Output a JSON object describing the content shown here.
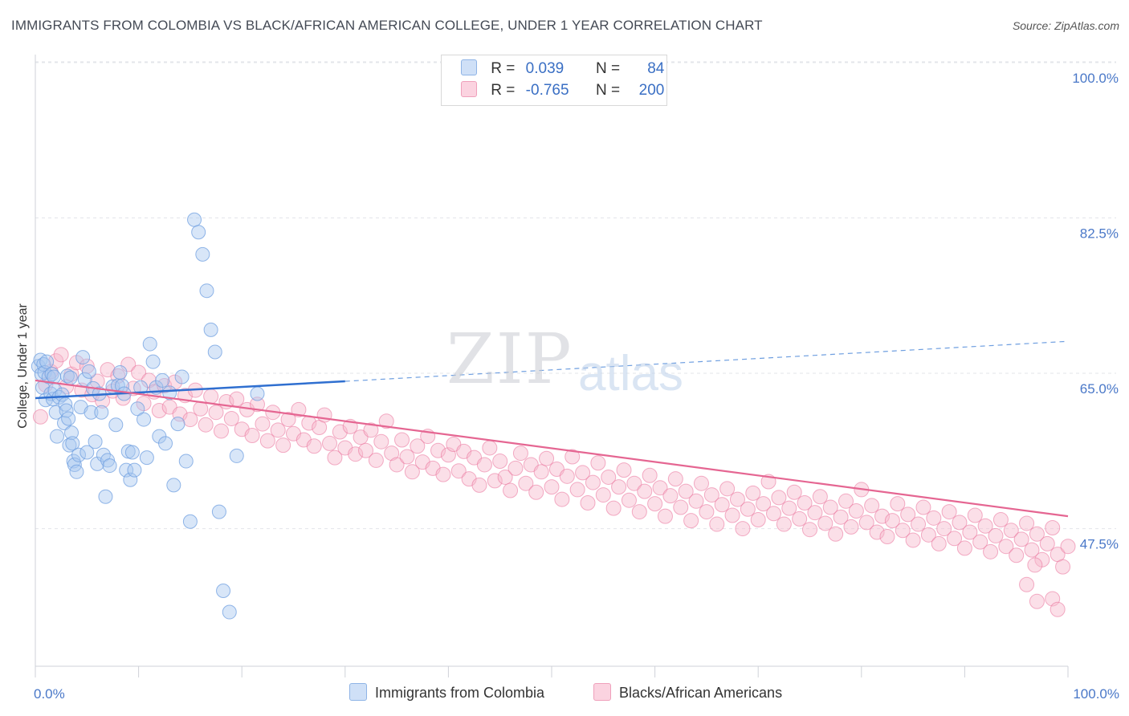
{
  "header": {
    "title": "IMMIGRANTS FROM COLOMBIA VS BLACK/AFRICAN AMERICAN COLLEGE, UNDER 1 YEAR CORRELATION CHART",
    "source": "Source: ZipAtlas.com"
  },
  "watermark": {
    "zip": "ZIP",
    "atlas": "atlas"
  },
  "legend": {
    "rows": [
      {
        "r_label": "R =",
        "r_value": "0.039",
        "n_label": "N =",
        "n_value": "84",
        "color": "#a9c8f0"
      },
      {
        "r_label": "R =",
        "r_value": "-0.765",
        "n_label": "N =",
        "n_value": "200",
        "color": "#f6b8cb"
      }
    ]
  },
  "bottom_legend": {
    "items": [
      {
        "label": "Immigrants from Colombia",
        "color": "#a9c8f0"
      },
      {
        "label": "Blacks/African Americans",
        "color": "#f6b8cb"
      }
    ]
  },
  "chart_data": {
    "type": "scatter",
    "title": "IMMIGRANTS FROM COLOMBIA VS BLACK/AFRICAN AMERICAN COLLEGE, UNDER 1 YEAR CORRELATION CHART",
    "xlabel": "",
    "ylabel": "College, Under 1 year",
    "xlim": [
      0,
      100
    ],
    "ylim": [
      32,
      100
    ],
    "x_tick_labels": [
      "0.0%",
      "100.0%"
    ],
    "y_ticks": [
      47.5,
      65.0,
      82.5,
      100.0
    ],
    "y_tick_labels": [
      "47.5%",
      "65.0%",
      "82.5%",
      "100.0%"
    ],
    "grid": true,
    "legend_position": "top-center",
    "series": [
      {
        "name": "Immigrants from Colombia",
        "color": "#6f9fe0",
        "fill": "#a9c8f0",
        "trend": {
          "x0": 0,
          "y0": 62.2,
          "x1": 30,
          "y1": 64.1,
          "dashed_x1": 100,
          "dashed_y1": 68.6
        },
        "points": [
          [
            0.3,
            65.8
          ],
          [
            0.5,
            66.5
          ],
          [
            0.6,
            64.9
          ],
          [
            0.7,
            63.4
          ],
          [
            0.8,
            66.0
          ],
          [
            0.9,
            65.1
          ],
          [
            1.0,
            62.0
          ],
          [
            1.1,
            66.3
          ],
          [
            1.3,
            64.6
          ],
          [
            1.5,
            62.7
          ],
          [
            1.6,
            64.9
          ],
          [
            1.7,
            62.1
          ],
          [
            1.8,
            64.6
          ],
          [
            1.9,
            63.1
          ],
          [
            2.0,
            60.6
          ],
          [
            2.1,
            57.9
          ],
          [
            2.3,
            62.3
          ],
          [
            2.6,
            62.6
          ],
          [
            2.8,
            59.4
          ],
          [
            2.9,
            61.5
          ],
          [
            3.0,
            60.8
          ],
          [
            3.1,
            64.7
          ],
          [
            3.2,
            59.9
          ],
          [
            3.3,
            56.9
          ],
          [
            3.4,
            64.5
          ],
          [
            3.5,
            58.3
          ],
          [
            3.6,
            57.1
          ],
          [
            3.7,
            55.1
          ],
          [
            3.8,
            54.7
          ],
          [
            4.0,
            53.9
          ],
          [
            4.2,
            55.8
          ],
          [
            4.4,
            61.2
          ],
          [
            4.6,
            66.8
          ],
          [
            4.8,
            64.3
          ],
          [
            5.0,
            56.1
          ],
          [
            5.2,
            65.2
          ],
          [
            5.4,
            60.6
          ],
          [
            5.6,
            63.3
          ],
          [
            5.8,
            57.3
          ],
          [
            6.0,
            54.8
          ],
          [
            6.2,
            62.7
          ],
          [
            6.4,
            60.6
          ],
          [
            6.6,
            55.8
          ],
          [
            6.8,
            51.1
          ],
          [
            7.0,
            55.2
          ],
          [
            7.2,
            54.6
          ],
          [
            7.5,
            63.5
          ],
          [
            7.8,
            59.2
          ],
          [
            8.0,
            63.6
          ],
          [
            8.2,
            65.1
          ],
          [
            8.4,
            63.6
          ],
          [
            8.6,
            62.7
          ],
          [
            8.8,
            54.1
          ],
          [
            9.0,
            56.2
          ],
          [
            9.2,
            53.0
          ],
          [
            9.4,
            56.1
          ],
          [
            9.6,
            54.1
          ],
          [
            9.9,
            61.0
          ],
          [
            10.2,
            63.4
          ],
          [
            10.5,
            59.8
          ],
          [
            10.8,
            55.5
          ],
          [
            11.1,
            68.3
          ],
          [
            11.4,
            66.3
          ],
          [
            11.7,
            63.4
          ],
          [
            12.0,
            57.9
          ],
          [
            12.3,
            64.2
          ],
          [
            12.6,
            57.1
          ],
          [
            13.0,
            62.8
          ],
          [
            13.4,
            52.4
          ],
          [
            13.8,
            59.3
          ],
          [
            14.2,
            64.6
          ],
          [
            14.6,
            55.1
          ],
          [
            15.0,
            48.3
          ],
          [
            15.4,
            82.3
          ],
          [
            15.8,
            80.9
          ],
          [
            16.2,
            78.4
          ],
          [
            16.6,
            74.3
          ],
          [
            17.0,
            69.9
          ],
          [
            17.4,
            67.4
          ],
          [
            17.8,
            49.4
          ],
          [
            18.2,
            40.5
          ],
          [
            18.8,
            38.1
          ],
          [
            19.5,
            55.7
          ],
          [
            21.5,
            62.7
          ]
        ]
      },
      {
        "name": "Blacks/African Americans",
        "color": "#e97099",
        "fill": "#f6b8cb",
        "trend": {
          "x0": 0,
          "y0": 64.2,
          "x1": 100,
          "y1": 48.9
        },
        "points": [
          [
            0.5,
            60.1
          ],
          [
            1.0,
            63.7
          ],
          [
            1.5,
            65.2
          ],
          [
            2.0,
            66.4
          ],
          [
            2.5,
            67.1
          ],
          [
            3.0,
            63.5
          ],
          [
            3.5,
            64.9
          ],
          [
            4.0,
            66.2
          ],
          [
            4.5,
            63.1
          ],
          [
            5.0,
            65.8
          ],
          [
            5.5,
            62.6
          ],
          [
            6.0,
            64.1
          ],
          [
            6.5,
            61.9
          ],
          [
            7.0,
            65.4
          ],
          [
            7.5,
            63.0
          ],
          [
            8.0,
            64.7
          ],
          [
            8.5,
            62.2
          ],
          [
            9.0,
            66.0
          ],
          [
            9.5,
            63.3
          ],
          [
            10.0,
            65.1
          ],
          [
            10.5,
            61.6
          ],
          [
            11.0,
            64.2
          ],
          [
            11.5,
            62.9
          ],
          [
            12.0,
            60.8
          ],
          [
            12.5,
            63.6
          ],
          [
            13.0,
            61.2
          ],
          [
            13.5,
            64.0
          ],
          [
            14.0,
            60.4
          ],
          [
            14.5,
            62.5
          ],
          [
            15.0,
            59.8
          ],
          [
            15.5,
            63.1
          ],
          [
            16.0,
            61.0
          ],
          [
            16.5,
            59.2
          ],
          [
            17.0,
            62.4
          ],
          [
            17.5,
            60.6
          ],
          [
            18.0,
            58.5
          ],
          [
            18.5,
            61.8
          ],
          [
            19.0,
            59.9
          ],
          [
            19.5,
            62.1
          ],
          [
            20.0,
            58.7
          ],
          [
            20.5,
            60.9
          ],
          [
            21.0,
            58.0
          ],
          [
            21.5,
            61.5
          ],
          [
            22.0,
            59.3
          ],
          [
            22.5,
            57.4
          ],
          [
            23.0,
            60.6
          ],
          [
            23.5,
            58.6
          ],
          [
            24.0,
            56.9
          ],
          [
            24.5,
            59.8
          ],
          [
            25.0,
            58.2
          ],
          [
            25.5,
            60.9
          ],
          [
            26.0,
            57.5
          ],
          [
            26.5,
            59.4
          ],
          [
            27.0,
            56.8
          ],
          [
            27.5,
            58.9
          ],
          [
            28.0,
            60.3
          ],
          [
            28.5,
            57.1
          ],
          [
            29.0,
            55.5
          ],
          [
            29.5,
            58.4
          ],
          [
            30.0,
            56.6
          ],
          [
            30.5,
            59.0
          ],
          [
            31.0,
            55.9
          ],
          [
            31.5,
            57.8
          ],
          [
            32.0,
            56.3
          ],
          [
            32.5,
            58.6
          ],
          [
            33.0,
            55.2
          ],
          [
            33.5,
            57.3
          ],
          [
            34.0,
            59.6
          ],
          [
            34.5,
            56.0
          ],
          [
            35.0,
            54.7
          ],
          [
            35.5,
            57.5
          ],
          [
            36.0,
            55.6
          ],
          [
            36.5,
            53.9
          ],
          [
            37.0,
            56.8
          ],
          [
            37.5,
            55.0
          ],
          [
            38.0,
            57.9
          ],
          [
            38.5,
            54.3
          ],
          [
            39.0,
            56.3
          ],
          [
            39.5,
            53.6
          ],
          [
            40.0,
            55.8
          ],
          [
            40.5,
            57.0
          ],
          [
            41.0,
            54.0
          ],
          [
            41.5,
            56.2
          ],
          [
            42.0,
            53.1
          ],
          [
            42.5,
            55.5
          ],
          [
            43.0,
            52.4
          ],
          [
            43.5,
            54.7
          ],
          [
            44.0,
            56.6
          ],
          [
            44.5,
            52.9
          ],
          [
            45.0,
            55.1
          ],
          [
            45.5,
            53.3
          ],
          [
            46.0,
            51.8
          ],
          [
            46.5,
            54.3
          ],
          [
            47.0,
            56.0
          ],
          [
            47.5,
            52.6
          ],
          [
            48.0,
            54.7
          ],
          [
            48.5,
            51.6
          ],
          [
            49.0,
            53.9
          ],
          [
            49.5,
            55.4
          ],
          [
            50.0,
            52.2
          ],
          [
            50.5,
            54.2
          ],
          [
            51.0,
            50.8
          ],
          [
            51.5,
            53.4
          ],
          [
            52.0,
            55.6
          ],
          [
            52.5,
            51.9
          ],
          [
            53.0,
            53.8
          ],
          [
            53.5,
            50.4
          ],
          [
            54.0,
            52.7
          ],
          [
            54.5,
            54.9
          ],
          [
            55.0,
            51.3
          ],
          [
            55.5,
            53.3
          ],
          [
            56.0,
            49.8
          ],
          [
            56.5,
            52.2
          ],
          [
            57.0,
            54.1
          ],
          [
            57.5,
            50.7
          ],
          [
            58.0,
            52.6
          ],
          [
            58.5,
            49.4
          ],
          [
            59.0,
            51.7
          ],
          [
            59.5,
            53.5
          ],
          [
            60.0,
            50.3
          ],
          [
            60.5,
            52.1
          ],
          [
            61.0,
            48.9
          ],
          [
            61.5,
            51.2
          ],
          [
            62.0,
            53.1
          ],
          [
            62.5,
            49.9
          ],
          [
            63.0,
            51.7
          ],
          [
            63.5,
            48.4
          ],
          [
            64.0,
            50.6
          ],
          [
            64.5,
            52.6
          ],
          [
            65.0,
            49.4
          ],
          [
            65.5,
            51.3
          ],
          [
            66.0,
            48.0
          ],
          [
            66.5,
            50.2
          ],
          [
            67.0,
            52.0
          ],
          [
            67.5,
            49.0
          ],
          [
            68.0,
            50.8
          ],
          [
            68.5,
            47.5
          ],
          [
            69.0,
            49.7
          ],
          [
            69.5,
            51.5
          ],
          [
            70.0,
            48.5
          ],
          [
            70.5,
            50.3
          ],
          [
            71.0,
            52.8
          ],
          [
            71.5,
            49.2
          ],
          [
            72.0,
            51.0
          ],
          [
            72.5,
            48.0
          ],
          [
            73.0,
            49.8
          ],
          [
            73.5,
            51.6
          ],
          [
            74.0,
            48.6
          ],
          [
            74.5,
            50.4
          ],
          [
            75.0,
            47.4
          ],
          [
            75.5,
            49.3
          ],
          [
            76.0,
            51.1
          ],
          [
            76.5,
            48.1
          ],
          [
            77.0,
            49.9
          ],
          [
            77.5,
            46.9
          ],
          [
            78.0,
            48.8
          ],
          [
            78.5,
            50.6
          ],
          [
            79.0,
            47.7
          ],
          [
            79.5,
            49.5
          ],
          [
            80.0,
            51.9
          ],
          [
            80.5,
            48.2
          ],
          [
            81.0,
            50.1
          ],
          [
            81.5,
            47.1
          ],
          [
            82.0,
            48.9
          ],
          [
            82.5,
            46.6
          ],
          [
            83.0,
            48.4
          ],
          [
            83.5,
            50.3
          ],
          [
            84.0,
            47.3
          ],
          [
            84.5,
            49.1
          ],
          [
            85.0,
            46.2
          ],
          [
            85.5,
            48.0
          ],
          [
            86.0,
            49.9
          ],
          [
            86.5,
            46.8
          ],
          [
            87.0,
            48.7
          ],
          [
            87.5,
            45.8
          ],
          [
            88.0,
            47.5
          ],
          [
            88.5,
            49.4
          ],
          [
            89.0,
            46.4
          ],
          [
            89.5,
            48.2
          ],
          [
            90.0,
            45.3
          ],
          [
            90.5,
            47.1
          ],
          [
            91.0,
            49.0
          ],
          [
            91.5,
            46.0
          ],
          [
            92.0,
            47.8
          ],
          [
            92.5,
            44.9
          ],
          [
            93.0,
            46.7
          ],
          [
            93.5,
            48.5
          ],
          [
            94.0,
            45.5
          ],
          [
            94.5,
            47.3
          ],
          [
            95.0,
            44.5
          ],
          [
            95.5,
            46.3
          ],
          [
            96.0,
            48.1
          ],
          [
            96.5,
            45.1
          ],
          [
            97.0,
            46.9
          ],
          [
            97.5,
            44.0
          ],
          [
            98.0,
            45.8
          ],
          [
            98.5,
            47.6
          ],
          [
            99.0,
            44.6
          ],
          [
            99.5,
            43.2
          ],
          [
            100.0,
            45.5
          ],
          [
            96.0,
            41.2
          ],
          [
            97.0,
            39.3
          ],
          [
            98.5,
            39.6
          ],
          [
            99.0,
            38.4
          ],
          [
            96.8,
            43.4
          ]
        ]
      }
    ]
  },
  "axis": {
    "ylabel": "College, Under 1 year",
    "x_left_label": "0.0%",
    "x_right_label": "100.0%",
    "y_labels": [
      "47.5%",
      "65.0%",
      "82.5%",
      "100.0%"
    ]
  }
}
